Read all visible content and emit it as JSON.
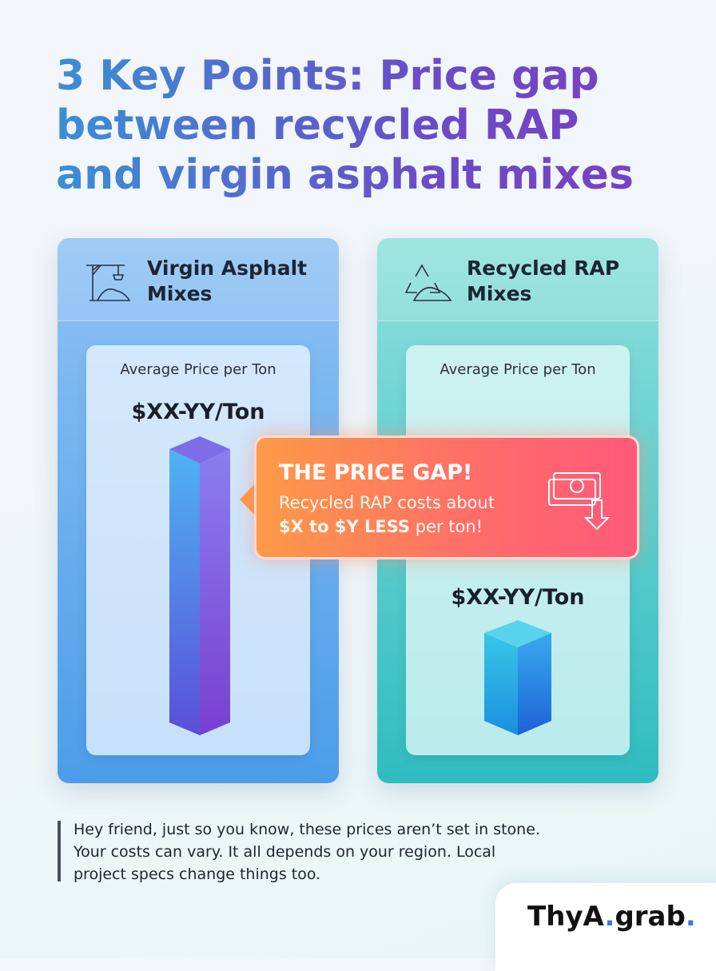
{
  "header": {
    "title": "3 Key Points: Price gap between recycled RAP and virgin asphalt mixes"
  },
  "cards": [
    {
      "title": "Virgin Asphalt Mixes",
      "label": "Average Price per Ton",
      "price": "$XX-YY/Ton"
    },
    {
      "title": "Recycled RAP Mixes",
      "label": "Average Price per Ton",
      "price": "$XX-YY/Ton"
    }
  ],
  "callout": {
    "heading": "THE PRICE GAP!",
    "line": "Recycled RAP costs about",
    "emphasis": "$X to $Y LESS",
    "rest": "per ton!"
  },
  "note": "Hey friend, just so you know, these prices aren’t set in stone. Your costs can vary. It all depends on your region. Local project specs change things too.",
  "brand": {
    "name": "ThyA",
    "dot1": ".",
    "suffix": "grab",
    "dot2": "."
  }
}
